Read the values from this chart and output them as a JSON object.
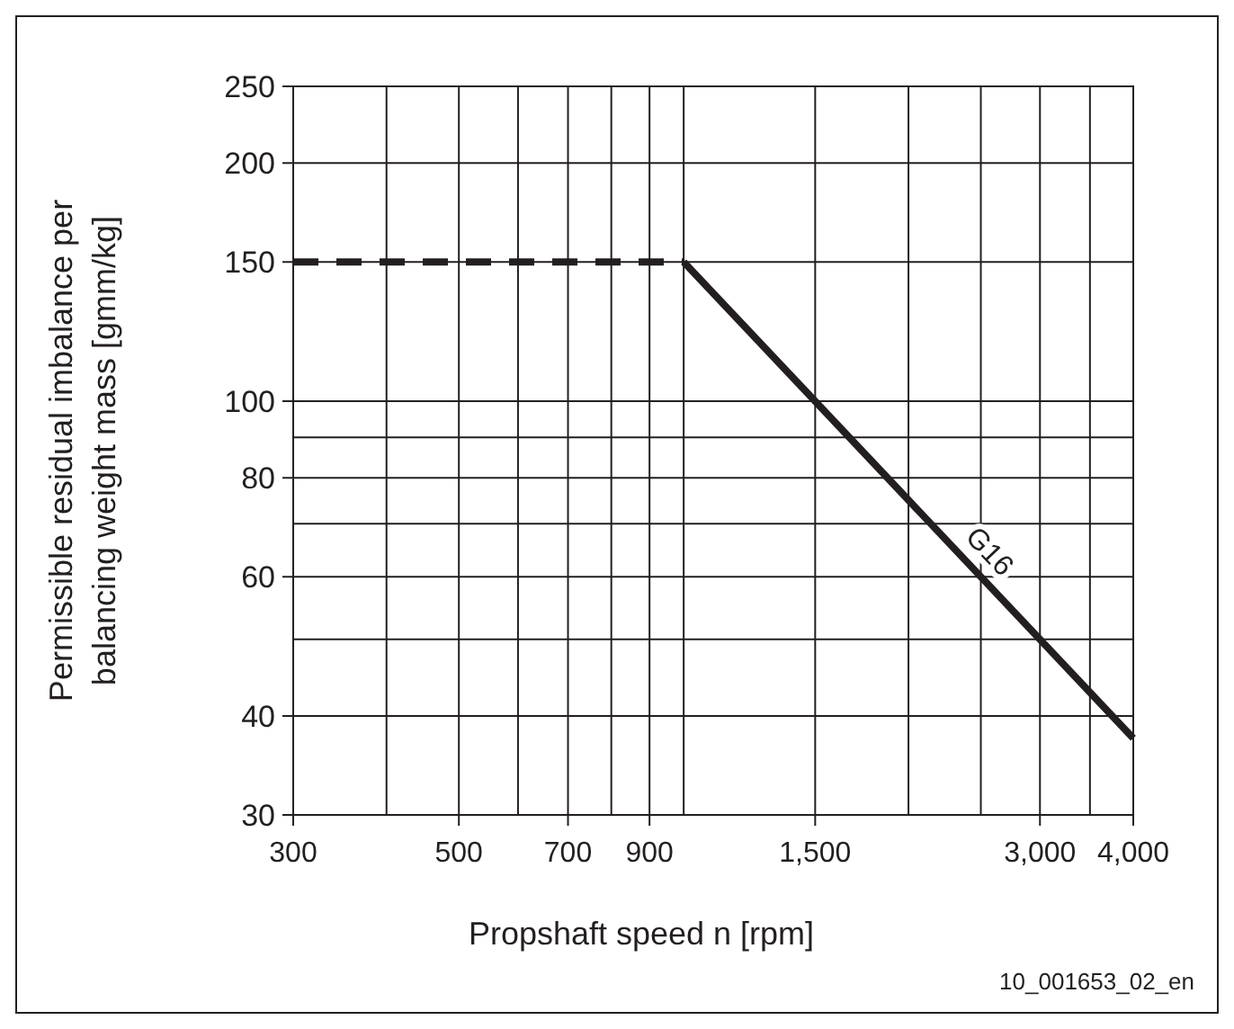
{
  "chart_data": {
    "type": "line",
    "xlabel": "Propshaft speed n [rpm]",
    "ylabel": "Permissible residual imbalance per balancing weight mass [gmm/kg]",
    "log": "xy",
    "grid": true,
    "xlim": [
      300,
      4000
    ],
    "ylim": [
      30,
      250
    ],
    "xticks": [
      {
        "value": 300,
        "label": "300"
      },
      {
        "value": 400,
        "label": null
      },
      {
        "value": 500,
        "label": "500"
      },
      {
        "value": 600,
        "label": null
      },
      {
        "value": 700,
        "label": "700"
      },
      {
        "value": 800,
        "label": null
      },
      {
        "value": 900,
        "label": "900"
      },
      {
        "value": 1000,
        "label": null
      },
      {
        "value": 1500,
        "label": "1,500"
      },
      {
        "value": 2000,
        "label": null
      },
      {
        "value": 2500,
        "label": null
      },
      {
        "value": 3000,
        "label": "3,000"
      },
      {
        "value": 3500,
        "label": null
      },
      {
        "value": 4000,
        "label": "4,000"
      }
    ],
    "yticks": [
      30,
      40,
      {
        "value": 50,
        "label": null
      },
      60,
      {
        "value": 70,
        "label": null
      },
      80,
      {
        "value": 90,
        "label": null
      },
      100,
      150,
      200,
      250
    ],
    "series": [
      {
        "color": "#231f20",
        "x": [
          300,
          1000
        ],
        "values": [
          150,
          150
        ],
        "line_style": "dashed"
      },
      {
        "name": "G16",
        "color": "#231f20",
        "x": [
          1000,
          4000
        ],
        "values": [
          150,
          37.5
        ],
        "line_style": "solid"
      }
    ],
    "annotations": [
      "10_001653_02_en"
    ]
  }
}
